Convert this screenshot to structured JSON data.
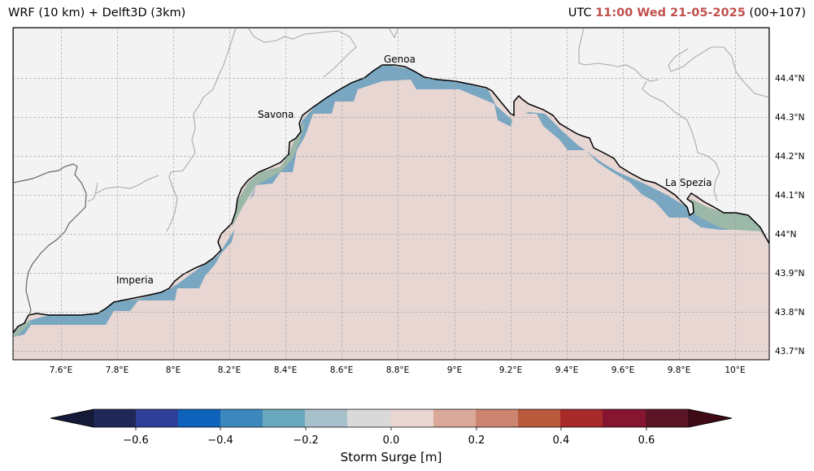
{
  "header": {
    "model": "WRF (10 km) + Delft3D (3km)",
    "utc_label": "UTC",
    "valid_time": "11:00 Wed 21-05-2025",
    "lead": "(00+107)"
  },
  "map": {
    "lon_ticks": [
      "7.6°E",
      "7.8°E",
      "8°E",
      "8.2°E",
      "8.4°E",
      "8.6°E",
      "8.8°E",
      "9°E",
      "9.2°E",
      "9.4°E",
      "9.6°E",
      "9.8°E",
      "10°E"
    ],
    "lat_ticks": [
      "44.4°N",
      "44.3°N",
      "44.2°N",
      "44.1°N",
      "44°N",
      "43.9°N",
      "43.8°N",
      "43.7°N"
    ],
    "places": [
      "Genoa",
      "Savona",
      "La Spezia",
      "Imperia"
    ],
    "colors": {
      "sea": "#e8d6d3",
      "land": "#f3f3f3",
      "coast": "#000000",
      "surge_band": "#79a7c2",
      "surge_band_green": "#9bb8a8"
    }
  },
  "colorbar": {
    "label": "Storm Surge [m]",
    "ticks": [
      "−0.6",
      "−0.4",
      "−0.2",
      "0.0",
      "0.2",
      "0.4",
      "0.6"
    ],
    "under_color": "#141a38",
    "over_color": "#3e0a15",
    "colors": [
      "#1f2757",
      "#2e3f99",
      "#0f62bb",
      "#3c88bd",
      "#6aa8bd",
      "#a8c0c9",
      "#d9d9d9",
      "#e8d6d3",
      "#dba99a",
      "#cb8570",
      "#b85a3c",
      "#a82b2b",
      "#851530",
      "#5a1425"
    ]
  }
}
